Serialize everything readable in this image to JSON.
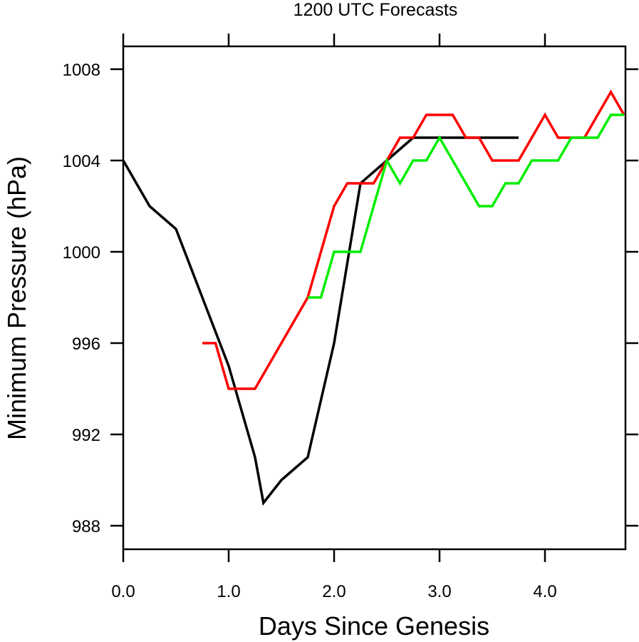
{
  "chart_data": {
    "type": "line",
    "title": "1200 UTC Forecasts",
    "xlabel": "Days Since Genesis",
    "ylabel": "Minimum Pressure (hPa)",
    "xlim": [
      0,
      4.75
    ],
    "ylim": [
      987,
      1009
    ],
    "x_ticks": [
      0,
      1,
      2,
      3,
      4
    ],
    "x_tick_labels": [
      "0.0",
      "1.0",
      "2.0",
      "3.0",
      "4.0"
    ],
    "y_ticks": [
      988,
      992,
      996,
      1000,
      1004,
      1008
    ],
    "y_tick_labels": [
      "988",
      "992",
      "996",
      "1000",
      "1004",
      "1008"
    ],
    "grid": false,
    "series": [
      {
        "color": "#000000",
        "points": [
          [
            0,
            1004
          ],
          [
            0.25,
            1002
          ],
          [
            0.5,
            1001
          ],
          [
            1.0,
            995
          ],
          [
            1.25,
            991
          ],
          [
            1.33,
            989
          ],
          [
            1.5,
            990
          ],
          [
            1.75,
            991
          ],
          [
            2.0,
            996
          ],
          [
            2.25,
            1003
          ],
          [
            2.5,
            1004
          ],
          [
            2.75,
            1005
          ],
          [
            3.0,
            1005
          ],
          [
            3.5,
            1005
          ],
          [
            3.75,
            1005
          ]
        ]
      },
      {
        "color": "#ff0000",
        "points": [
          [
            0.75,
            996
          ],
          [
            0.875,
            996
          ],
          [
            1.0,
            994
          ],
          [
            1.25,
            994
          ],
          [
            1.5,
            996
          ],
          [
            1.75,
            998
          ],
          [
            1.875,
            1000
          ],
          [
            2.0,
            1002
          ],
          [
            2.125,
            1003
          ],
          [
            2.375,
            1003
          ],
          [
            2.5,
            1004
          ],
          [
            2.625,
            1005
          ],
          [
            2.75,
            1005
          ],
          [
            2.875,
            1006
          ],
          [
            3.125,
            1006
          ],
          [
            3.25,
            1005
          ],
          [
            3.375,
            1005
          ],
          [
            3.5,
            1004
          ],
          [
            3.75,
            1004
          ],
          [
            4.0,
            1006
          ],
          [
            4.125,
            1005
          ],
          [
            4.375,
            1005
          ],
          [
            4.625,
            1007
          ],
          [
            4.75,
            1006
          ]
        ]
      },
      {
        "color": "#00ee00",
        "points": [
          [
            1.75,
            998
          ],
          [
            1.875,
            998
          ],
          [
            2.0,
            1000
          ],
          [
            2.25,
            1000
          ],
          [
            2.5,
            1004
          ],
          [
            2.625,
            1003
          ],
          [
            2.75,
            1004
          ],
          [
            2.875,
            1004
          ],
          [
            3.0,
            1005
          ],
          [
            3.375,
            1002
          ],
          [
            3.5,
            1002
          ],
          [
            3.625,
            1003
          ],
          [
            3.75,
            1003
          ],
          [
            3.875,
            1004
          ],
          [
            4.125,
            1004
          ],
          [
            4.25,
            1005
          ],
          [
            4.5,
            1005
          ],
          [
            4.625,
            1006
          ],
          [
            4.75,
            1006
          ]
        ]
      }
    ]
  }
}
